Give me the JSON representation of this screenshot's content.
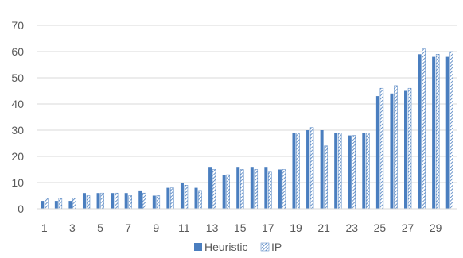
{
  "chart_data": {
    "type": "bar",
    "categories": [
      1,
      2,
      3,
      4,
      5,
      6,
      7,
      8,
      9,
      10,
      11,
      12,
      13,
      14,
      15,
      16,
      17,
      18,
      19,
      20,
      21,
      22,
      23,
      24,
      25,
      26,
      27,
      28,
      29,
      30
    ],
    "x_tick_labels": [
      "1",
      "3",
      "5",
      "7",
      "9",
      "11",
      "13",
      "15",
      "17",
      "19",
      "21",
      "23",
      "25",
      "27",
      "29"
    ],
    "y_tick_labels": [
      "0",
      "10",
      "20",
      "30",
      "40",
      "50",
      "60",
      "70"
    ],
    "ylim": [
      0,
      70
    ],
    "y_step": 10,
    "grid": "horizontal",
    "legend_position": "bottom",
    "title": "",
    "xlabel": "",
    "ylabel": "",
    "series": [
      {
        "name": "Heuristic",
        "color": "#4a7ebf",
        "pattern": "solid",
        "values": [
          3,
          3,
          3,
          6,
          6,
          6,
          6,
          7,
          5,
          8,
          10,
          8,
          16,
          13,
          16,
          16,
          16,
          15,
          29,
          30,
          30,
          29,
          28,
          29,
          43,
          44,
          45,
          59,
          58,
          58
        ]
      },
      {
        "name": "IP",
        "color": "#4a7ebf",
        "pattern": "diagonal-hatch",
        "values": [
          4,
          4,
          4,
          5,
          6,
          6,
          5,
          6,
          5,
          8,
          9,
          7,
          15,
          13,
          15,
          15,
          14,
          15,
          29,
          31,
          24,
          29,
          28,
          29,
          46,
          47,
          46,
          61,
          59,
          60
        ]
      }
    ]
  }
}
